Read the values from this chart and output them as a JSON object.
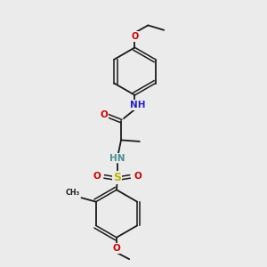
{
  "background_color": "#ebebeb",
  "bond_color": "#1a1a1a",
  "atom_colors": {
    "O": "#cc0000",
    "N": "#2222cc",
    "S": "#b8b800",
    "HN": "#4a9090",
    "C": "#1a1a1a"
  },
  "fig_w": 3.0,
  "fig_h": 3.0,
  "dpi": 100
}
